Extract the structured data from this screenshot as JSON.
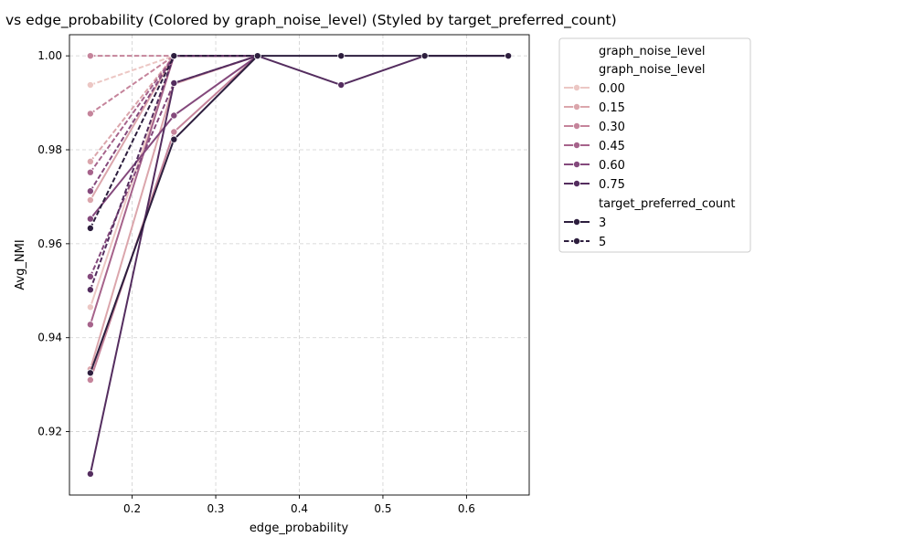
{
  "chart_data": {
    "type": "line",
    "title": "vs edge_probability (Colored by graph_noise_level) (Styled by target_preferred_count)",
    "xlabel": "edge_probability",
    "ylabel": "Avg_NMI",
    "xlim": [
      0.125,
      0.675
    ],
    "ylim": [
      0.9065,
      1.0045
    ],
    "xticks": [
      "0.2",
      "0.3",
      "0.4",
      "0.5",
      "0.6"
    ],
    "yticks": [
      "0.92",
      "0.94",
      "0.96",
      "0.98",
      "1.00"
    ],
    "grid": true,
    "legend_position": "outside-right",
    "colors": {
      "0.00": "#ecc7c4",
      "0.15": "#dba6ac",
      "0.30": "#c5849b",
      "0.45": "#a6638b",
      "0.60": "#84497c",
      "0.75": "#542d5f",
      "dark": "#2d1e3e"
    },
    "legend": {
      "title": "graph_noise_level",
      "hue_header": "graph_noise_level",
      "hue_entries": [
        "0.00",
        "0.15",
        "0.30",
        "0.45",
        "0.60",
        "0.75"
      ],
      "style_header": "target_preferred_count",
      "style_entries": [
        "3",
        "5"
      ]
    },
    "series": [
      {
        "hue": "0.00",
        "style": "3",
        "points": [
          [
            0.15,
            0.9465
          ],
          [
            0.25,
            1.0
          ],
          [
            0.35,
            1.0
          ]
        ]
      },
      {
        "hue": "0.00",
        "style": "5",
        "points": [
          [
            0.15,
            0.9938
          ],
          [
            0.25,
            1.0
          ],
          [
            0.35,
            1.0
          ]
        ]
      },
      {
        "hue": "0.15",
        "style": "3",
        "points": [
          [
            0.15,
            0.9333
          ],
          [
            0.25,
            0.994
          ],
          [
            0.35,
            1.0
          ]
        ]
      },
      {
        "hue": "0.15",
        "style": "5",
        "points": [
          [
            0.15,
            0.9775
          ],
          [
            0.25,
            1.0
          ],
          [
            0.35,
            1.0
          ]
        ]
      },
      {
        "hue": "0.15",
        "style": "3",
        "points": [
          [
            0.15,
            0.9693
          ],
          [
            0.25,
            1.0
          ],
          [
            0.35,
            1.0
          ]
        ]
      },
      {
        "hue": "0.30",
        "style": "5",
        "points": [
          [
            0.15,
            1.0
          ],
          [
            0.25,
            1.0
          ],
          [
            0.35,
            1.0
          ]
        ]
      },
      {
        "hue": "0.30",
        "style": "5",
        "points": [
          [
            0.15,
            0.9877
          ],
          [
            0.25,
            1.0
          ],
          [
            0.35,
            1.0
          ]
        ]
      },
      {
        "hue": "0.30",
        "style": "3",
        "points": [
          [
            0.15,
            0.931
          ],
          [
            0.25,
            0.9838
          ],
          [
            0.35,
            1.0
          ]
        ]
      },
      {
        "hue": "0.45",
        "style": "3",
        "points": [
          [
            0.15,
            0.9428
          ],
          [
            0.25,
            1.0
          ],
          [
            0.35,
            1.0
          ]
        ]
      },
      {
        "hue": "0.45",
        "style": "5",
        "points": [
          [
            0.15,
            0.9752
          ],
          [
            0.25,
            1.0
          ],
          [
            0.35,
            1.0
          ]
        ]
      },
      {
        "hue": "0.60",
        "style": "5",
        "points": [
          [
            0.15,
            0.9712
          ],
          [
            0.25,
            1.0
          ],
          [
            0.35,
            1.0
          ]
        ]
      },
      {
        "hue": "0.60",
        "style": "3",
        "points": [
          [
            0.15,
            0.9653
          ],
          [
            0.25,
            0.9873
          ],
          [
            0.35,
            1.0
          ]
        ]
      },
      {
        "hue": "0.60",
        "style": "5",
        "points": [
          [
            0.15,
            0.953
          ],
          [
            0.25,
            0.9942
          ],
          [
            0.35,
            1.0
          ]
        ]
      },
      {
        "hue": "0.75",
        "style": "3",
        "points": [
          [
            0.15,
            0.911
          ],
          [
            0.25,
            0.9942
          ],
          [
            0.35,
            1.0
          ],
          [
            0.45,
            0.9938
          ],
          [
            0.55,
            1.0
          ],
          [
            0.65,
            1.0
          ]
        ]
      },
      {
        "hue": "0.75",
        "style": "5",
        "points": [
          [
            0.15,
            0.9502
          ],
          [
            0.25,
            1.0
          ],
          [
            0.35,
            1.0
          ]
        ]
      },
      {
        "hue": "dark",
        "style": "3",
        "points": [
          [
            0.15,
            0.9325
          ],
          [
            0.25,
            0.9822
          ],
          [
            0.35,
            1.0
          ],
          [
            0.45,
            1.0
          ],
          [
            0.55,
            1.0
          ],
          [
            0.65,
            1.0
          ]
        ]
      },
      {
        "hue": "dark",
        "style": "5",
        "points": [
          [
            0.15,
            0.9633
          ],
          [
            0.25,
            1.0
          ],
          [
            0.35,
            1.0
          ]
        ]
      }
    ]
  }
}
